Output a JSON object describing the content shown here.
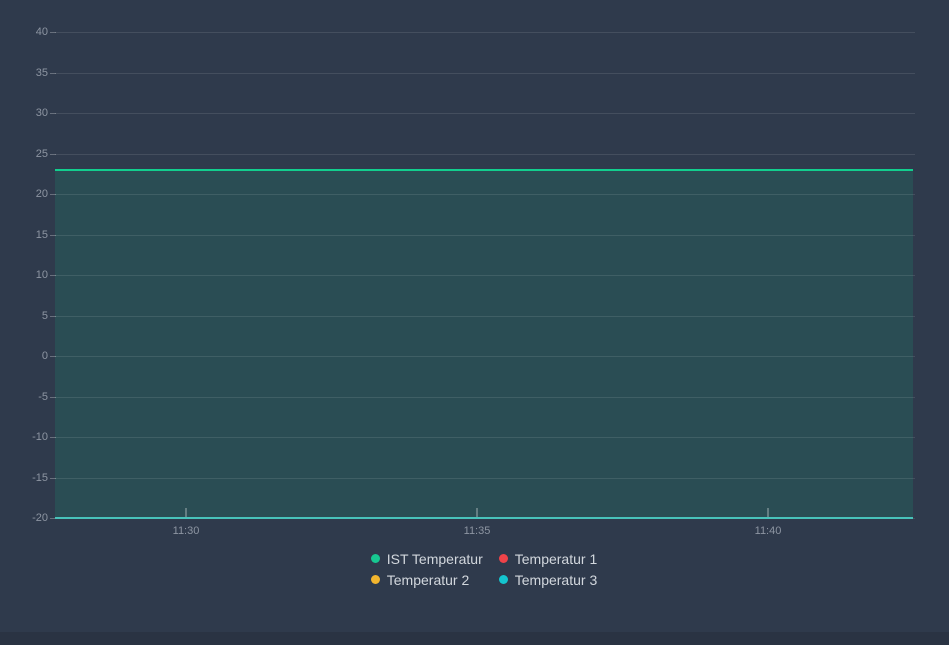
{
  "page": {
    "background_color": "#2f3a4c",
    "footer_bar_color": "#2a3343",
    "axis_label_color": "#8d95a2",
    "legend_text_color": "#d2d7dd",
    "gridline_color": "rgba(255,255,255,0.10)",
    "tick_color": "rgba(255,255,255,0.28)"
  },
  "chart_data": {
    "type": "line",
    "title": "",
    "xlabel": "",
    "ylabel": "",
    "ylim": [
      -20,
      40
    ],
    "y_ticks": [
      40,
      35,
      30,
      25,
      20,
      15,
      10,
      5,
      0,
      -5,
      -10,
      -15,
      -20
    ],
    "x_tick_labels": [
      "11:30",
      "11:35",
      "11:40"
    ],
    "x_tick_interval_minutes": 5,
    "grid": true,
    "legend_position": "bottom-center",
    "series": [
      {
        "name": "IST Temperatur",
        "color": "#17c791",
        "line_color": "#12ce8e",
        "value": 23,
        "fill": true,
        "fill_opacity": 0.13,
        "visible": true
      },
      {
        "name": "Temperatur 1",
        "color": "#ef4349",
        "line_color": "#ef4349",
        "value": null,
        "fill": false,
        "visible": false
      },
      {
        "name": "Temperatur 2",
        "color": "#f2b52e",
        "line_color": "#f2b52e",
        "value": null,
        "fill": false,
        "visible": false
      },
      {
        "name": "Temperatur 3",
        "color": "#14c5cf",
        "line_color": "#48c2ba",
        "value": -20,
        "fill": false,
        "visible": true
      }
    ]
  }
}
